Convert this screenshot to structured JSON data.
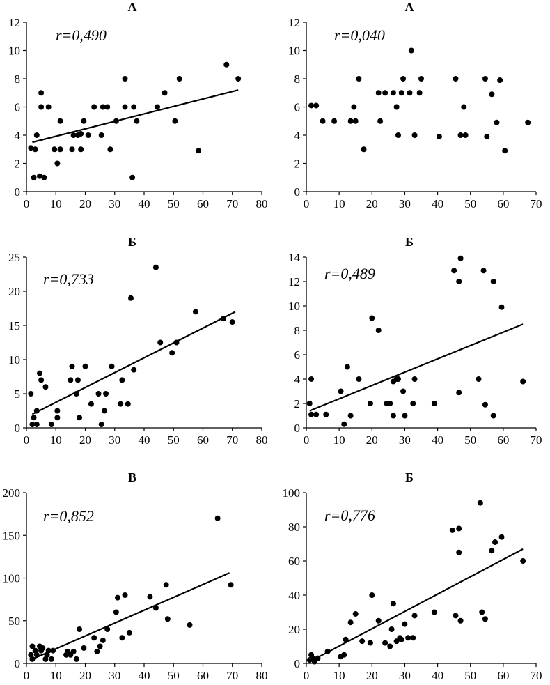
{
  "chart_data": [
    {
      "type": "scatter",
      "title": "А",
      "annotation": "r=0,490",
      "xlim": [
        0,
        80
      ],
      "xticks": [
        0,
        10,
        20,
        30,
        40,
        50,
        60,
        70,
        80
      ],
      "ylim": [
        0,
        12
      ],
      "yticks": [
        0,
        2,
        4,
        6,
        8,
        10,
        12
      ],
      "trendline": [
        [
          2,
          3.5
        ],
        [
          72,
          7.2
        ]
      ],
      "points": [
        [
          1.5,
          3.1
        ],
        [
          2.5,
          1
        ],
        [
          3,
          3
        ],
        [
          3.5,
          4
        ],
        [
          4.5,
          1.1
        ],
        [
          5,
          7
        ],
        [
          5,
          6
        ],
        [
          6,
          1
        ],
        [
          7.5,
          6
        ],
        [
          9.5,
          3
        ],
        [
          10.5,
          2
        ],
        [
          11.5,
          3
        ],
        [
          11.5,
          5
        ],
        [
          15.5,
          3
        ],
        [
          16,
          4
        ],
        [
          17.5,
          4
        ],
        [
          18.5,
          4.1
        ],
        [
          18.5,
          3
        ],
        [
          19.5,
          5
        ],
        [
          21,
          4
        ],
        [
          23,
          6
        ],
        [
          25.5,
          4
        ],
        [
          26,
          6
        ],
        [
          27.5,
          6
        ],
        [
          28.5,
          3
        ],
        [
          30.5,
          5
        ],
        [
          33.5,
          8
        ],
        [
          33.5,
          6
        ],
        [
          36,
          1
        ],
        [
          36.5,
          6
        ],
        [
          37.5,
          5
        ],
        [
          44.5,
          6
        ],
        [
          47,
          7
        ],
        [
          50.5,
          5
        ],
        [
          52,
          8
        ],
        [
          58.5,
          2.9
        ],
        [
          68,
          9
        ],
        [
          72,
          8
        ]
      ]
    },
    {
      "type": "scatter",
      "title": "А",
      "annotation": "r=0,040",
      "xlim": [
        0,
        70
      ],
      "xticks": [
        0,
        10,
        20,
        30,
        40,
        50,
        60,
        70
      ],
      "ylim": [
        0,
        12
      ],
      "yticks": [
        0,
        2,
        4,
        6,
        8,
        10,
        12
      ],
      "points": [
        [
          1.5,
          6.1
        ],
        [
          3,
          6.1
        ],
        [
          5,
          5
        ],
        [
          8.5,
          5
        ],
        [
          13.5,
          5
        ],
        [
          14.5,
          6
        ],
        [
          15,
          5
        ],
        [
          16,
          8
        ],
        [
          17.5,
          3
        ],
        [
          22,
          7
        ],
        [
          22.5,
          5
        ],
        [
          24,
          7
        ],
        [
          26.5,
          7
        ],
        [
          27.5,
          6
        ],
        [
          28,
          4
        ],
        [
          29,
          7
        ],
        [
          29.5,
          8
        ],
        [
          31.5,
          7
        ],
        [
          32,
          10
        ],
        [
          33,
          4
        ],
        [
          34.5,
          7
        ],
        [
          35,
          8
        ],
        [
          40.5,
          3.9
        ],
        [
          45.5,
          8
        ],
        [
          47,
          4
        ],
        [
          48,
          6
        ],
        [
          48.5,
          4
        ],
        [
          54.5,
          8
        ],
        [
          55,
          3.9
        ],
        [
          56.5,
          6.9
        ],
        [
          58,
          4.9
        ],
        [
          59,
          7.9
        ],
        [
          60.5,
          2.9
        ],
        [
          67.5,
          4.9
        ]
      ]
    },
    {
      "type": "scatter",
      "title": "Б",
      "annotation": "r=0,733",
      "xlim": [
        0,
        80
      ],
      "xticks": [
        0,
        10,
        20,
        30,
        40,
        50,
        60,
        70,
        80
      ],
      "ylim": [
        0,
        25
      ],
      "yticks": [
        0,
        5,
        10,
        15,
        20,
        25
      ],
      "trendline": [
        [
          2,
          2
        ],
        [
          71,
          17
        ]
      ],
      "points": [
        [
          1.5,
          5
        ],
        [
          2,
          0.5
        ],
        [
          2.5,
          1.5
        ],
        [
          3.5,
          2.5
        ],
        [
          3.5,
          0.5
        ],
        [
          4.5,
          8
        ],
        [
          5,
          7
        ],
        [
          6.5,
          6
        ],
        [
          8.5,
          0.5
        ],
        [
          10.5,
          1.5
        ],
        [
          10.5,
          2.5
        ],
        [
          15,
          7
        ],
        [
          15.5,
          9
        ],
        [
          17,
          5
        ],
        [
          17.5,
          7
        ],
        [
          18,
          1.5
        ],
        [
          20,
          9
        ],
        [
          22,
          3.5
        ],
        [
          24.5,
          5
        ],
        [
          25.5,
          0.5
        ],
        [
          26.5,
          2.5
        ],
        [
          27,
          5
        ],
        [
          29,
          9
        ],
        [
          32,
          3.5
        ],
        [
          32.5,
          7
        ],
        [
          34.5,
          3.5
        ],
        [
          35.5,
          19
        ],
        [
          36.5,
          8.5
        ],
        [
          44,
          23.5
        ],
        [
          45.5,
          12.5
        ],
        [
          49.5,
          11
        ],
        [
          51,
          12.5
        ],
        [
          57.5,
          17
        ],
        [
          67,
          16
        ],
        [
          70,
          15.5
        ]
      ]
    },
    {
      "type": "scatter",
      "title": "Б",
      "annotation": "r=0,489",
      "xlim": [
        0,
        70
      ],
      "xticks": [
        0,
        10,
        20,
        30,
        40,
        50,
        60,
        70
      ],
      "ylim": [
        0,
        14
      ],
      "yticks": [
        0,
        2,
        4,
        6,
        8,
        10,
        12,
        14
      ],
      "trendline": [
        [
          1,
          1.4
        ],
        [
          66,
          8.5
        ]
      ],
      "points": [
        [
          1,
          2
        ],
        [
          1.5,
          4
        ],
        [
          1.5,
          1.1
        ],
        [
          3,
          1.1
        ],
        [
          6,
          1.1
        ],
        [
          10.5,
          3
        ],
        [
          11.5,
          0.3
        ],
        [
          12.5,
          5
        ],
        [
          13.5,
          1
        ],
        [
          16,
          4
        ],
        [
          19.5,
          2
        ],
        [
          20,
          9
        ],
        [
          22,
          8
        ],
        [
          24.5,
          2
        ],
        [
          25.5,
          2
        ],
        [
          26.5,
          1
        ],
        [
          26.5,
          3.8
        ],
        [
          27.5,
          4
        ],
        [
          28,
          4
        ],
        [
          29.5,
          3
        ],
        [
          30,
          1
        ],
        [
          32.5,
          2
        ],
        [
          33,
          4
        ],
        [
          39,
          2
        ],
        [
          45,
          12.9
        ],
        [
          46.5,
          12
        ],
        [
          46.5,
          2.9
        ],
        [
          47,
          13.9
        ],
        [
          52.5,
          4
        ],
        [
          54,
          12.9
        ],
        [
          54.5,
          1.9
        ],
        [
          57,
          12
        ],
        [
          57,
          1
        ],
        [
          59.5,
          9.9
        ],
        [
          66,
          3.8
        ]
      ]
    },
    {
      "type": "scatter",
      "title": "В",
      "annotation": "r=0,852",
      "xlim": [
        0,
        80
      ],
      "xticks": [
        0,
        10,
        20,
        30,
        40,
        50,
        60,
        70,
        80
      ],
      "ylim": [
        0,
        200
      ],
      "yticks": [
        0,
        50,
        100,
        150,
        200
      ],
      "trendline": [
        [
          2,
          5
        ],
        [
          69,
          106
        ]
      ],
      "points": [
        [
          1.5,
          10
        ],
        [
          2,
          5
        ],
        [
          2,
          20
        ],
        [
          3,
          15
        ],
        [
          3.5,
          10
        ],
        [
          4.5,
          20
        ],
        [
          5,
          15
        ],
        [
          5.5,
          18
        ],
        [
          6.5,
          5
        ],
        [
          7,
          10
        ],
        [
          7.5,
          15
        ],
        [
          8.5,
          5
        ],
        [
          9,
          15
        ],
        [
          13.5,
          10
        ],
        [
          14,
          14
        ],
        [
          15,
          10
        ],
        [
          16,
          14
        ],
        [
          17,
          5
        ],
        [
          18,
          40
        ],
        [
          19.5,
          18
        ],
        [
          23,
          30
        ],
        [
          24,
          14
        ],
        [
          25,
          20
        ],
        [
          26,
          27
        ],
        [
          27.5,
          40
        ],
        [
          30.5,
          60
        ],
        [
          31,
          77
        ],
        [
          32.5,
          30
        ],
        [
          33.5,
          80
        ],
        [
          35,
          36
        ],
        [
          42,
          78
        ],
        [
          44,
          65
        ],
        [
          47.5,
          92
        ],
        [
          48,
          52
        ],
        [
          55.5,
          45
        ],
        [
          65,
          170
        ],
        [
          69.5,
          92
        ]
      ]
    },
    {
      "type": "scatter",
      "title": "Б",
      "annotation": "r=0,776",
      "xlim": [
        0,
        70
      ],
      "xticks": [
        0,
        10,
        20,
        30,
        40,
        50,
        60,
        70
      ],
      "ylim": [
        0,
        100
      ],
      "yticks": [
        0,
        20,
        40,
        60,
        80,
        100
      ],
      "trendline": [
        [
          1,
          1
        ],
        [
          66,
          67
        ]
      ],
      "points": [
        [
          1,
          2
        ],
        [
          1.5,
          5
        ],
        [
          2,
          3
        ],
        [
          2.5,
          1
        ],
        [
          3.5,
          3
        ],
        [
          6.5,
          7
        ],
        [
          10.5,
          4
        ],
        [
          11.5,
          5
        ],
        [
          12,
          14
        ],
        [
          13.5,
          24
        ],
        [
          15,
          29
        ],
        [
          17,
          13
        ],
        [
          19.5,
          12
        ],
        [
          20,
          40
        ],
        [
          22,
          25
        ],
        [
          24,
          12
        ],
        [
          25.5,
          10
        ],
        [
          26,
          20
        ],
        [
          26.5,
          35
        ],
        [
          27.5,
          13
        ],
        [
          28.5,
          15
        ],
        [
          29,
          14
        ],
        [
          30,
          23
        ],
        [
          31,
          15
        ],
        [
          32.5,
          15
        ],
        [
          33,
          28
        ],
        [
          39,
          30
        ],
        [
          44.5,
          78
        ],
        [
          45.5,
          28
        ],
        [
          46.5,
          79
        ],
        [
          46.5,
          65
        ],
        [
          47,
          25
        ],
        [
          53,
          94
        ],
        [
          53.5,
          30
        ],
        [
          54.5,
          26
        ],
        [
          56.5,
          66
        ],
        [
          57.5,
          71
        ],
        [
          59.5,
          74
        ],
        [
          66,
          60
        ]
      ]
    }
  ]
}
